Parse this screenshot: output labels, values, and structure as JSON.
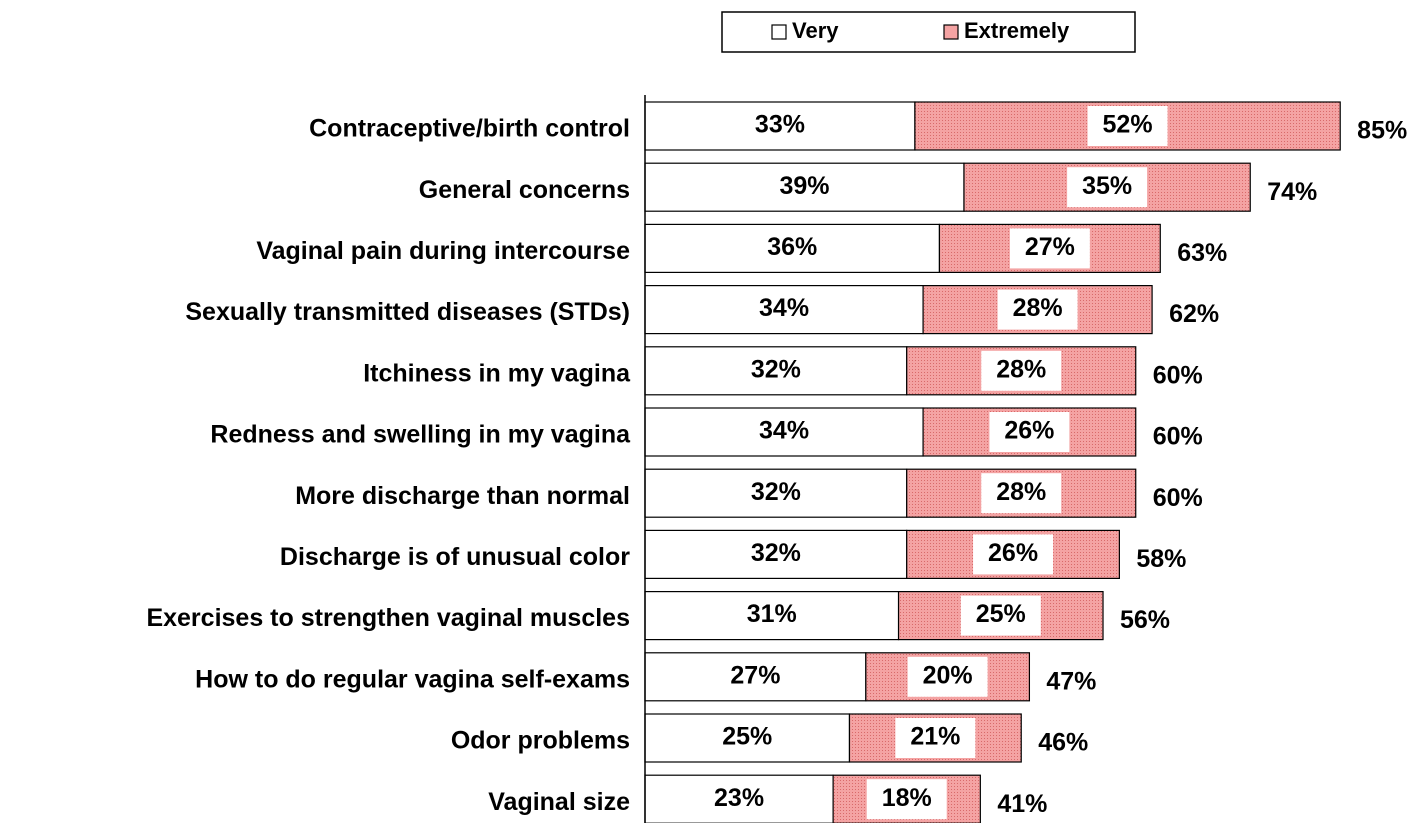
{
  "chart_data": {
    "type": "stacked_bar_horizontal",
    "categories": [
      "Contraceptive/birth control",
      "General concerns",
      "Vaginal pain during intercourse",
      "Sexually transmitted diseases (STDs)",
      "Itchiness in my vagina",
      "Redness and swelling in my vagina",
      "More discharge than normal",
      "Discharge is of unusual color",
      "Exercises to strengthen vaginal muscles",
      "How to do regular vagina self-exams",
      "Odor problems",
      "Vaginal size"
    ],
    "series": [
      {
        "name": "Very",
        "color": "#ffffff",
        "values": [
          33,
          39,
          36,
          34,
          32,
          34,
          32,
          32,
          31,
          27,
          25,
          23
        ],
        "value_labels": [
          "33%",
          "39%",
          "36%",
          "34%",
          "32%",
          "34%",
          "32%",
          "32%",
          "31%",
          "27%",
          "25%",
          "23%"
        ]
      },
      {
        "name": "Extremely",
        "color": "#f4a3a3",
        "values": [
          52,
          35,
          27,
          28,
          28,
          26,
          28,
          26,
          25,
          20,
          21,
          18
        ],
        "value_labels": [
          "52%",
          "35%",
          "27%",
          "28%",
          "28%",
          "26%",
          "28%",
          "26%",
          "25%",
          "20%",
          "21%",
          "18%"
        ]
      }
    ],
    "totals": [
      "85%",
      "74%",
      "63%",
      "62%",
      "60%",
      "60%",
      "60%",
      "58%",
      "56%",
      "47%",
      "46%",
      "41%"
    ],
    "xlim": [
      0,
      95
    ],
    "legend": "top"
  }
}
